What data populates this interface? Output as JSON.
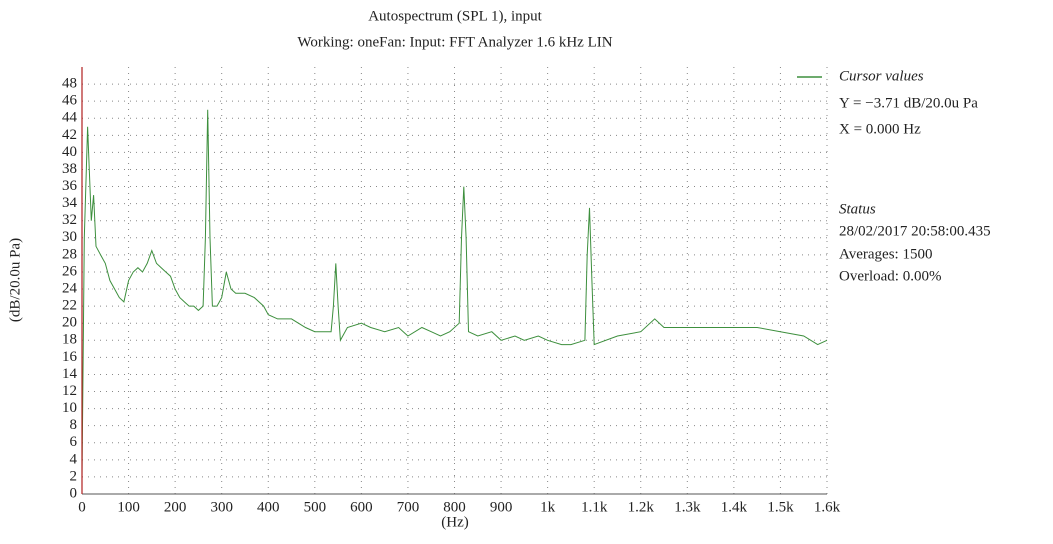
{
  "chart_data": {
    "type": "line",
    "title": "Autospectrum (SPL 1), input",
    "subtitle": "Working: oneFan: Input: FFT Analyzer 1.6 kHz LIN",
    "y_label": "(dB/20.0u Pa)",
    "x_label": "(Hz)",
    "x": [
      0,
      5,
      12,
      20,
      25,
      30,
      40,
      50,
      60,
      70,
      80,
      90,
      100,
      110,
      120,
      130,
      140,
      150,
      160,
      170,
      180,
      190,
      200,
      210,
      220,
      230,
      240,
      250,
      260,
      265,
      270,
      275,
      280,
      290,
      300,
      310,
      320,
      330,
      350,
      370,
      390,
      400,
      420,
      450,
      480,
      500,
      520,
      535,
      540,
      545,
      550,
      555,
      570,
      600,
      620,
      650,
      680,
      700,
      730,
      750,
      770,
      790,
      810,
      815,
      820,
      825,
      830,
      850,
      880,
      900,
      930,
      950,
      980,
      1000,
      1030,
      1050,
      1080,
      1085,
      1090,
      1095,
      1100,
      1150,
      1200,
      1230,
      1250,
      1300,
      1350,
      1400,
      1450,
      1500,
      1550,
      1580,
      1600
    ],
    "series": [
      {
        "name": "Cursor values",
        "color": "#3d8f3d",
        "values": [
          2,
          30,
          43,
          32,
          35,
          29,
          28,
          27,
          25,
          24,
          23,
          22.5,
          25,
          26,
          26.5,
          26,
          27,
          28.5,
          27,
          26.5,
          26,
          25.5,
          24,
          23,
          22.5,
          22,
          22,
          21.5,
          22,
          30,
          45,
          30,
          22,
          22,
          23,
          26,
          24,
          23.5,
          23.5,
          23,
          22,
          21,
          20.5,
          20.5,
          19.5,
          19,
          19,
          19,
          22,
          27,
          22,
          18,
          19.5,
          20,
          19.5,
          19,
          19.5,
          18.5,
          19.5,
          19,
          18.5,
          19,
          20,
          30,
          36,
          30,
          19,
          18.5,
          19,
          18,
          18.5,
          18,
          18.5,
          18,
          17.5,
          17.5,
          18,
          28,
          33.5,
          25,
          17.5,
          18.5,
          19,
          20.5,
          19.5,
          19.5,
          19.5,
          19.5,
          19.5,
          19,
          18.5,
          17.5,
          18
        ]
      }
    ],
    "cursor": {
      "x": 0,
      "color": "#b02020"
    },
    "annotations": [
      "Y = −3.71 dB/20.0u Pa",
      "X = 0.000 Hz"
    ],
    "status": {
      "title": "Status",
      "lines": [
        "28/02/2017  20:58:00.435",
        "Averages: 1500",
        "Overload: 0.00%"
      ]
    },
    "xlim": [
      0,
      1600
    ],
    "xticks": [
      0,
      100,
      200,
      300,
      400,
      500,
      600,
      700,
      800,
      900,
      {
        "value": 1000,
        "label": "1k"
      },
      {
        "value": 1100,
        "label": "1.1k"
      },
      {
        "value": 1200,
        "label": "1.2k"
      },
      {
        "value": 1300,
        "label": "1.3k"
      },
      {
        "value": 1400,
        "label": "1.4k"
      },
      {
        "value": 1500,
        "label": "1.5k"
      },
      {
        "value": 1600,
        "label": "1.6k"
      }
    ],
    "ylim": [
      0,
      50
    ],
    "yticks": [
      0,
      2,
      4,
      6,
      8,
      10,
      12,
      14,
      16,
      18,
      20,
      22,
      24,
      26,
      28,
      30,
      32,
      34,
      36,
      38,
      40,
      42,
      44,
      46,
      48
    ],
    "grid": true
  }
}
